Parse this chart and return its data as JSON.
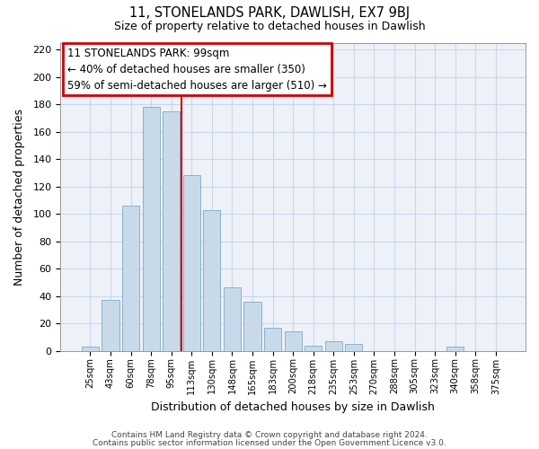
{
  "title": "11, STONELANDS PARK, DAWLISH, EX7 9BJ",
  "subtitle": "Size of property relative to detached houses in Dawlish",
  "xlabel": "Distribution of detached houses by size in Dawlish",
  "ylabel": "Number of detached properties",
  "bar_color": "#c8daea",
  "bar_edgecolor": "#7aaac8",
  "grid_color": "#c8d8ea",
  "background_color": "#eef2f8",
  "categories": [
    "25sqm",
    "43sqm",
    "60sqm",
    "78sqm",
    "95sqm",
    "113sqm",
    "130sqm",
    "148sqm",
    "165sqm",
    "183sqm",
    "200sqm",
    "218sqm",
    "235sqm",
    "253sqm",
    "270sqm",
    "288sqm",
    "305sqm",
    "323sqm",
    "340sqm",
    "358sqm",
    "375sqm"
  ],
  "values": [
    3,
    37,
    106,
    178,
    175,
    128,
    103,
    46,
    36,
    17,
    14,
    4,
    7,
    5,
    0,
    0,
    0,
    0,
    3,
    0,
    0
  ],
  "vline_x": 4.5,
  "vline_color": "#cc0000",
  "ylim": [
    0,
    225
  ],
  "yticks": [
    0,
    20,
    40,
    60,
    80,
    100,
    120,
    140,
    160,
    180,
    200,
    220
  ],
  "annotation_title": "11 STONELANDS PARK: 99sqm",
  "annotation_line1": "← 40% of detached houses are smaller (350)",
  "annotation_line2": "59% of semi-detached houses are larger (510) →",
  "annotation_box_color": "#cc0000",
  "footer_line1": "Contains HM Land Registry data © Crown copyright and database right 2024.",
  "footer_line2": "Contains public sector information licensed under the Open Government Licence v3.0."
}
